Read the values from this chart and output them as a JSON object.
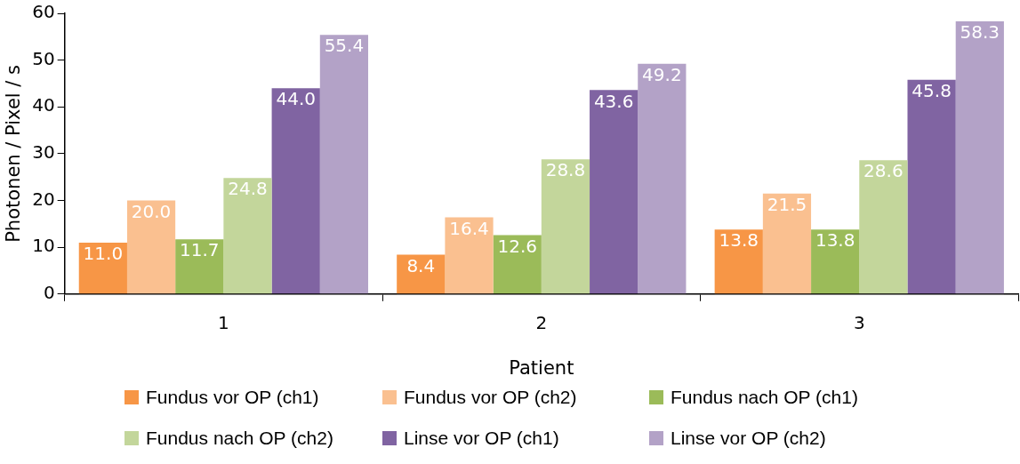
{
  "chart_data": {
    "type": "bar",
    "xlabel": "Patient",
    "ylabel": "Photonen / Pixel / s",
    "categories": [
      "1",
      "2",
      "3"
    ],
    "series": [
      {
        "name": "Fundus vor OP (ch1)",
        "color": "#f79646",
        "values": [
          11.0,
          8.4,
          13.8
        ],
        "value_labels": [
          "11.0",
          "8.4",
          "13.8"
        ]
      },
      {
        "name": "Fundus vor OP (ch2)",
        "color": "#fac090",
        "values": [
          20.0,
          16.4,
          21.5
        ],
        "value_labels": [
          "20.0",
          "16.4",
          "21.5"
        ]
      },
      {
        "name": "Fundus nach OP (ch1)",
        "color": "#9bbb59",
        "values": [
          11.7,
          12.6,
          13.8
        ],
        "value_labels": [
          "11.7",
          "12.6",
          "13.8"
        ]
      },
      {
        "name": "Fundus nach OP (ch2)",
        "color": "#c3d69b",
        "values": [
          24.8,
          28.8,
          28.6
        ],
        "value_labels": [
          "24.8",
          "28.8",
          "28.6"
        ]
      },
      {
        "name": "Linse vor OP (ch1)",
        "color": "#8064a2",
        "values": [
          44.0,
          43.6,
          45.8
        ],
        "value_labels": [
          "44.0",
          "43.6",
          "45.8"
        ]
      },
      {
        "name": "Linse vor OP (ch2)",
        "color": "#b3a2c7",
        "values": [
          55.4,
          49.2,
          58.3
        ],
        "value_labels": [
          "55.4",
          "49.2",
          "58.3"
        ]
      }
    ],
    "ylim": [
      0,
      60
    ],
    "yticks": [
      0,
      10,
      20,
      30,
      40,
      50,
      60
    ],
    "grid": false,
    "legend": "bottom"
  }
}
